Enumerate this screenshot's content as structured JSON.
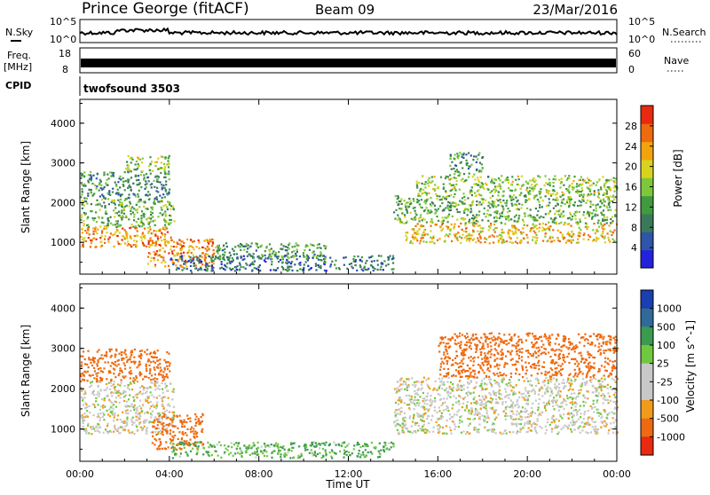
{
  "header": {
    "station": "Prince George (fitACF)",
    "beam": "Beam 09",
    "date": "23/Mar/2016"
  },
  "noise_panel": {
    "left_label": "N.Sky",
    "right_label": "N.Search",
    "left_ticks": [
      "10^5",
      "10^0"
    ],
    "right_ticks": [
      "10^5",
      "10^0"
    ]
  },
  "freq_panel": {
    "left_label_1": "Freq.",
    "left_label_2": "[MHz]",
    "right_label": "Nave",
    "left_ticks": [
      "18",
      "8"
    ],
    "right_ticks": [
      "60",
      "0"
    ]
  },
  "cpid": {
    "label": "CPID",
    "value": "twofsound 3503"
  },
  "chart_data": [
    {
      "type": "heatmap",
      "name": "power",
      "ylabel": "Slant Range [km]",
      "ylim": [
        200,
        4600
      ],
      "yticks": [
        "1000",
        "2000",
        "3000",
        "4000"
      ],
      "colorbar_label": "Power [dB]",
      "colorbar_ticks": [
        "4",
        "8",
        "12",
        "16",
        "20",
        "24",
        "28"
      ],
      "colorscale": [
        "#2222dd",
        "#2f55a8",
        "#3a7a5a",
        "#3f9a40",
        "#7cc83a",
        "#d8d21e",
        "#f2a40c",
        "#ee6a0e",
        "#e82a10"
      ],
      "bands": [
        {
          "x": [
            0,
            4.2
          ],
          "y": [
            900,
            1400
          ],
          "v": 24
        },
        {
          "x": [
            0,
            4.2
          ],
          "y": [
            1400,
            2100
          ],
          "v": 14
        },
        {
          "x": [
            0,
            4.0
          ],
          "y": [
            2100,
            2800
          ],
          "v": 10
        },
        {
          "x": [
            2.0,
            4.0
          ],
          "y": [
            2800,
            3200
          ],
          "v": 16
        },
        {
          "x": [
            3.0,
            6.0
          ],
          "y": [
            400,
            1100
          ],
          "v": 24
        },
        {
          "x": [
            4.0,
            14.0
          ],
          "y": [
            300,
            700
          ],
          "v": 8
        },
        {
          "x": [
            6.0,
            11.0
          ],
          "y": [
            600,
            1000
          ],
          "v": 12
        },
        {
          "x": [
            14.5,
            24.0
          ],
          "y": [
            1000,
            1500
          ],
          "v": 22
        },
        {
          "x": [
            14.0,
            24.0
          ],
          "y": [
            1500,
            2200
          ],
          "v": 14
        },
        {
          "x": [
            15.0,
            24.0
          ],
          "y": [
            2200,
            2700
          ],
          "v": 16
        },
        {
          "x": [
            16.5,
            18.0
          ],
          "y": [
            2700,
            3300
          ],
          "v": 12
        }
      ]
    },
    {
      "type": "heatmap",
      "name": "velocity",
      "ylabel": "Slant Range [km]",
      "xlabel": "Time UT",
      "ylim": [
        200,
        4600
      ],
      "yticks": [
        "1000",
        "2000",
        "3000",
        "4000"
      ],
      "xticks": [
        "00:00",
        "04:00",
        "08:00",
        "12:00",
        "16:00",
        "20:00",
        "00:00"
      ],
      "colorbar_label": "Velocity [m s^-1]",
      "colorbar_ticks": [
        "1000",
        "500",
        "100",
        "25",
        "-25",
        "-100",
        "-500",
        "-1000"
      ],
      "colorscale": [
        "#1a3fb0",
        "#2f6a9a",
        "#3a9a50",
        "#70c840",
        "#c8c8c8",
        "#c8c8c8",
        "#f29a1a",
        "#ee6a10",
        "#e82a10"
      ],
      "bands": [
        {
          "x": [
            0,
            4.2
          ],
          "y": [
            900,
            2200
          ],
          "v": 0
        },
        {
          "x": [
            0,
            4.0
          ],
          "y": [
            2200,
            3000
          ],
          "v": -300
        },
        {
          "x": [
            3.2,
            5.5
          ],
          "y": [
            500,
            1400
          ],
          "v": -400
        },
        {
          "x": [
            4.0,
            14.0
          ],
          "y": [
            300,
            700
          ],
          "v": 60
        },
        {
          "x": [
            14.0,
            24.0
          ],
          "y": [
            900,
            2300
          ],
          "v": 0
        },
        {
          "x": [
            16.0,
            24.0
          ],
          "y": [
            2300,
            3400
          ],
          "v": -300
        }
      ]
    }
  ]
}
